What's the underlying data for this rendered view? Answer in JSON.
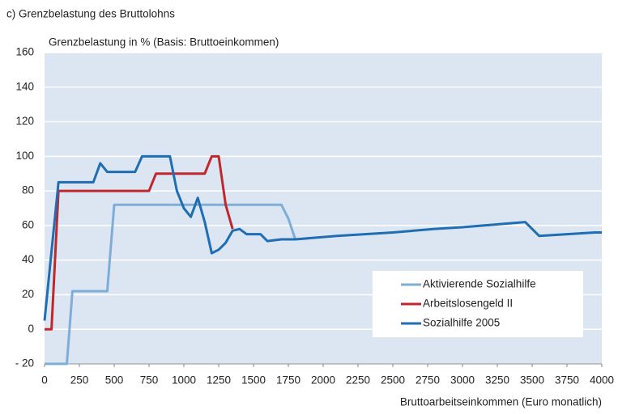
{
  "chart_data": {
    "type": "line",
    "title": "c) Grenzbelastung des Bruttolohns",
    "y_label": "Grenzbelastung in % (Basis: Bruttoeinkommen)",
    "x_label": "Bruttoarbeitseinkommen (Euro monatlich)",
    "xlim": [
      0,
      4000
    ],
    "xticks": [
      0,
      250,
      500,
      750,
      1000,
      1250,
      1500,
      1750,
      2000,
      2250,
      2500,
      2750,
      3000,
      3250,
      3500,
      3750,
      4000
    ],
    "ylim": [
      -20,
      160
    ],
    "yticks": [
      {
        "value": -20,
        "label": "- 20"
      },
      0,
      20,
      40,
      60,
      80,
      100,
      120,
      140,
      160
    ],
    "grid": true,
    "legend": "lower right",
    "series": [
      {
        "name": "Aktivierende Sozialhilfe",
        "color": "#7eaed8",
        "x": [
          0,
          160,
          200,
          450,
          500,
          1700,
          1750,
          1800
        ],
        "values": [
          -20,
          -20,
          22,
          22,
          72,
          72,
          64,
          52
        ]
      },
      {
        "name": "Arbeitslosengeld II",
        "color": "#c0272d",
        "x": [
          0,
          50,
          100,
          750,
          800,
          1150,
          1200,
          1250,
          1300,
          1350
        ],
        "values": [
          0,
          0,
          80,
          80,
          90,
          90,
          100,
          100,
          72,
          58
        ]
      },
      {
        "name": "Sozialhilfe 2005",
        "color": "#1f6db3",
        "x": [
          0,
          100,
          350,
          400,
          450,
          650,
          700,
          900,
          950,
          1000,
          1050,
          1100,
          1150,
          1200,
          1250,
          1300,
          1350,
          1400,
          1450,
          1550,
          1600,
          1700,
          1800,
          2100,
          2300,
          2500,
          2800,
          3000,
          3300,
          3450,
          3550,
          3750,
          3950,
          4000
        ],
        "values": [
          5,
          85,
          85,
          96,
          91,
          91,
          100,
          100,
          80,
          70,
          65,
          76,
          62,
          44,
          46,
          50,
          57,
          58,
          55,
          55,
          51,
          52,
          52,
          54,
          55,
          56,
          58,
          59,
          61,
          62,
          54,
          55,
          56,
          56
        ]
      }
    ]
  }
}
